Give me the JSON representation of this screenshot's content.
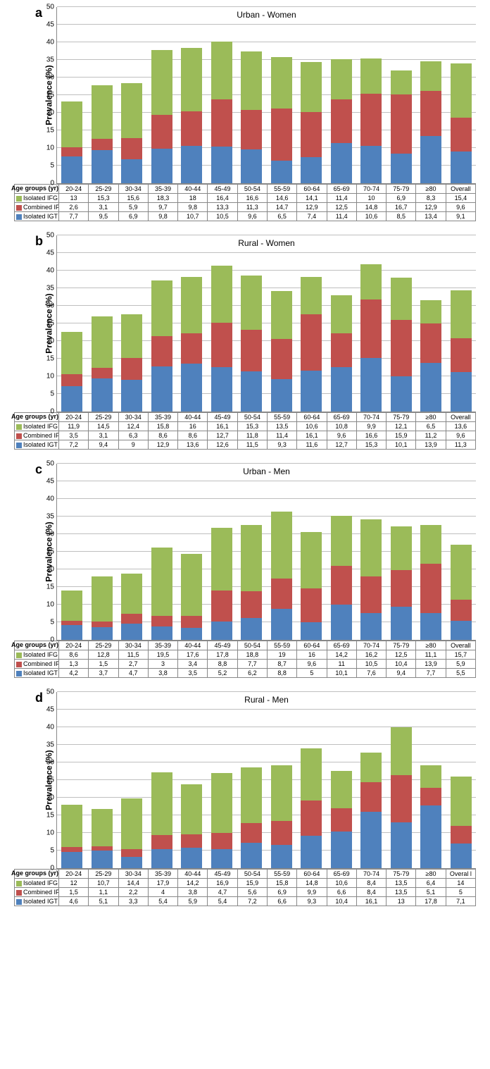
{
  "colors": {
    "igt": "#4f81bd",
    "combined": "#c0504d",
    "ifg": "#9bbb59",
    "grid": "#bfbfbf",
    "axis": "#888888",
    "background": "#ffffff"
  },
  "y_axis": {
    "label": "Prevalence (%)",
    "max": 50,
    "step": 5
  },
  "x_axis_label": "Age groups (yr)",
  "categories": [
    "20-24",
    "25-29",
    "30-34",
    "35-39",
    "40-44",
    "45-49",
    "50-54",
    "55-59",
    "60-64",
    "65-69",
    "70-74",
    "75-79",
    "≥80",
    "Overall"
  ],
  "series_labels": {
    "ifg": "Isolated IFG",
    "combined": "Combined IFG+IGT",
    "igt": "Isolated IGT"
  },
  "panels": [
    {
      "letter": "a",
      "title": "Urban - Women",
      "ifg": [
        13,
        15.3,
        15.6,
        18.3,
        18,
        16.4,
        16.6,
        14.6,
        14.1,
        11.4,
        10,
        6.9,
        8.3,
        15.4
      ],
      "combined": [
        2.6,
        3.1,
        5.9,
        9.7,
        9.8,
        13.3,
        11.3,
        14.7,
        12.9,
        12.5,
        14.8,
        16.7,
        12.9,
        9.6
      ],
      "igt": [
        7.7,
        9.5,
        6.9,
        9.8,
        10.7,
        10.5,
        9.6,
        6.5,
        7.4,
        11.4,
        10.6,
        8.5,
        13.4,
        9.1
      ]
    },
    {
      "letter": "b",
      "title": "Rural - Women",
      "ifg": [
        11.9,
        14.5,
        12.4,
        15.8,
        16,
        16.1,
        15.3,
        13.5,
        10.6,
        10.8,
        9.9,
        12.1,
        6.5,
        13.6
      ],
      "combined": [
        3.5,
        3.1,
        6.3,
        8.6,
        8.6,
        12.7,
        11.8,
        11.4,
        16.1,
        9.6,
        16.6,
        15.9,
        11.2,
        9.6
      ],
      "igt": [
        7.2,
        9.4,
        9,
        12.9,
        13.6,
        12.6,
        11.5,
        9.3,
        11.6,
        12.7,
        15.3,
        10.1,
        13.9,
        11.3
      ]
    },
    {
      "letter": "c",
      "title": "Urban - Men",
      "ifg": [
        8.6,
        12.8,
        11.5,
        19.5,
        17.6,
        17.8,
        18.8,
        19,
        16,
        14.2,
        16.2,
        12.5,
        11.1,
        15.7
      ],
      "combined": [
        1.3,
        1.5,
        2.7,
        3,
        3.4,
        8.8,
        7.7,
        8.7,
        9.6,
        11,
        10.5,
        10.4,
        13.9,
        5.9
      ],
      "igt": [
        4.2,
        3.7,
        4.7,
        3.8,
        3.5,
        5.2,
        6.2,
        8.8,
        5,
        10.1,
        7.6,
        9.4,
        7.7,
        5.5
      ]
    },
    {
      "letter": "d",
      "title": "Rural - Men",
      "categories_override": [
        "20-24",
        "25-29",
        "30-34",
        "35-39",
        "40-44",
        "45-49",
        "50-54",
        "55-59",
        "60-64",
        "65-69",
        "70-74",
        "75-79",
        "≥80",
        "Overal l"
      ],
      "ifg": [
        12,
        10.7,
        14.4,
        17.9,
        14.2,
        16.9,
        15.9,
        15.8,
        14.8,
        10.6,
        8.4,
        13.5,
        6.4,
        14
      ],
      "combined": [
        1.5,
        1.1,
        2.2,
        4,
        3.8,
        4.7,
        5.6,
        6.9,
        9.9,
        6.6,
        8.4,
        13.5,
        5.1,
        5
      ],
      "igt": [
        4.6,
        5.1,
        3.3,
        5.4,
        5.9,
        5.4,
        7.2,
        6.6,
        9.3,
        10.4,
        16.1,
        13,
        17.8,
        7.1
      ]
    }
  ]
}
